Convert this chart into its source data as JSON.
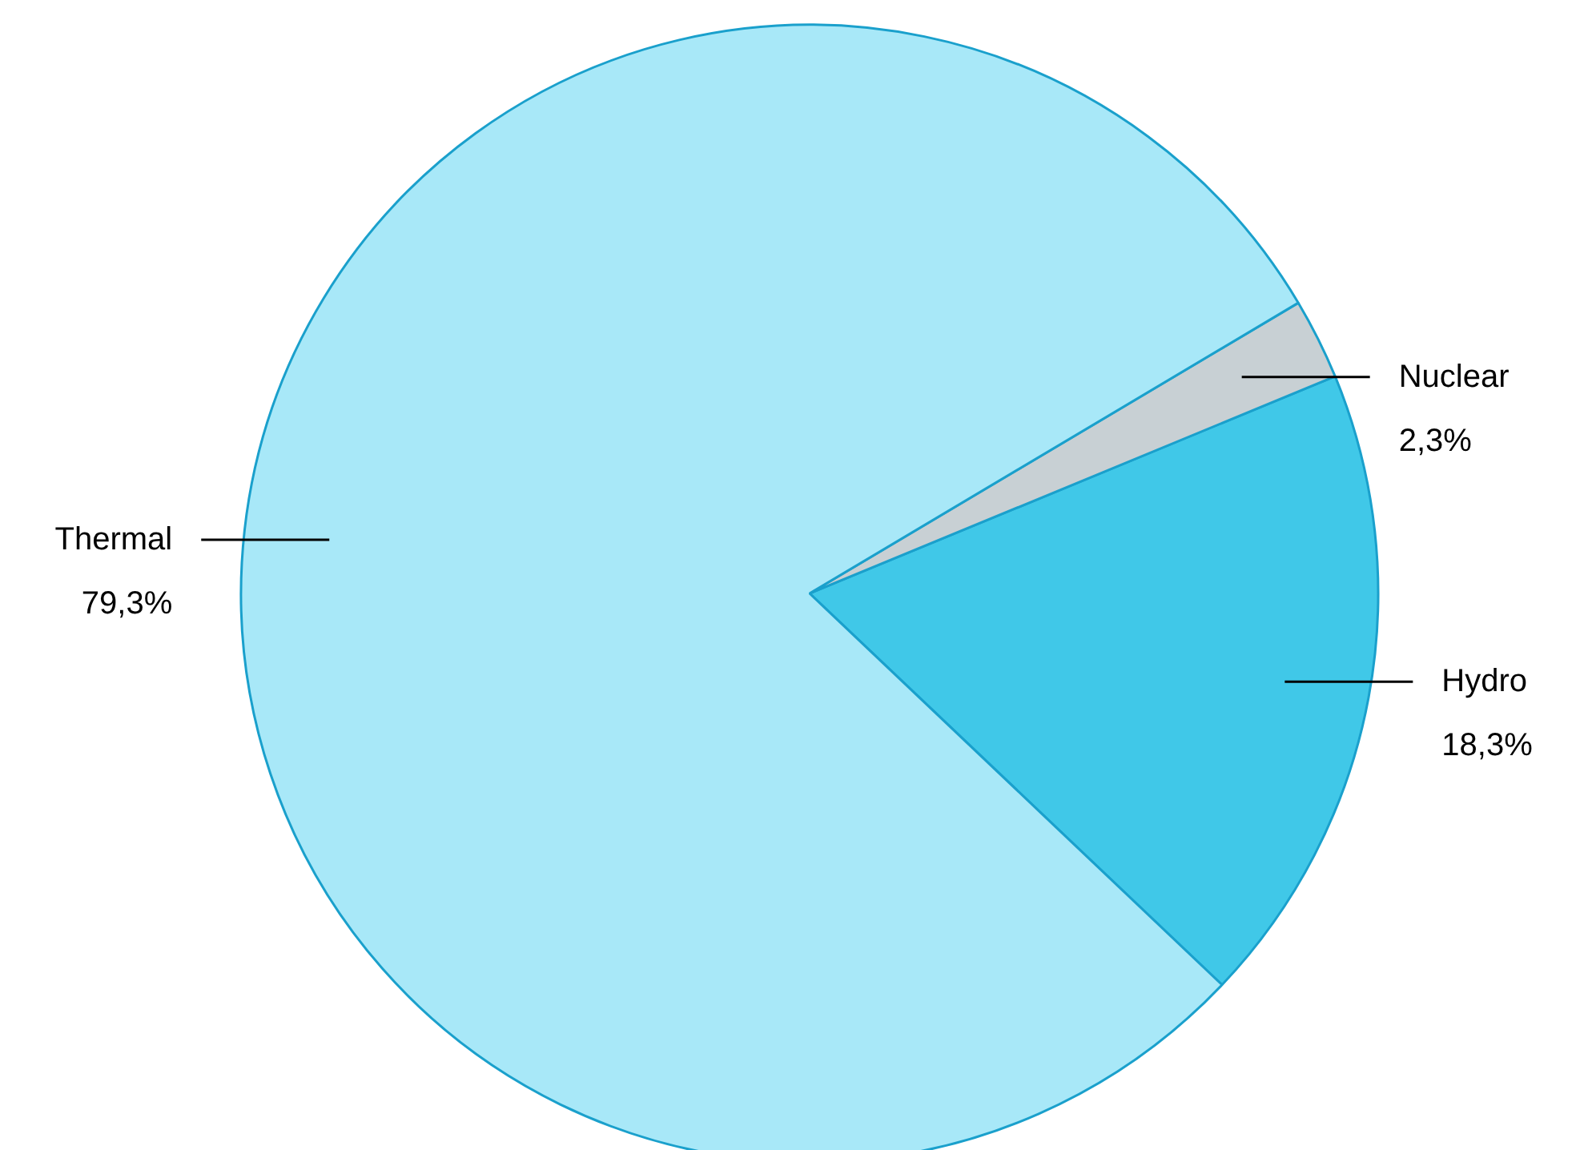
{
  "chart_data": {
    "type": "pie",
    "categories": [
      "Hydro",
      "Nuclear",
      "Thermal"
    ],
    "values": [
      18.3,
      2.3,
      79.3
    ],
    "value_labels": [
      "18,3%",
      "2,3%",
      "79,3%"
    ],
    "colors": [
      "#40c8e8",
      "#c8d0d4",
      "#a8e8f8"
    ]
  }
}
